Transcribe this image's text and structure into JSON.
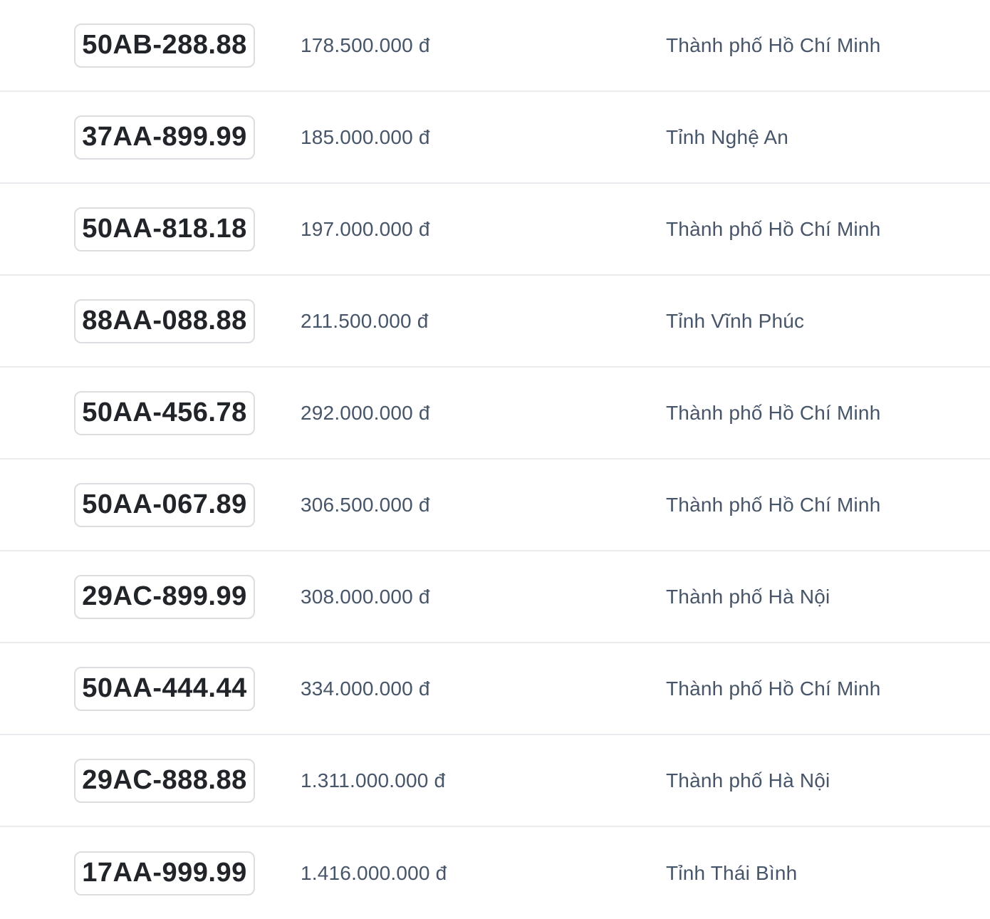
{
  "colors": {
    "background": "#ffffff",
    "row_divider": "#eaebef",
    "plate_text": "#212429",
    "plate_border": "#dddde1",
    "secondary_text": "#475569"
  },
  "table": {
    "currency_symbol": "đ",
    "rows": [
      {
        "plate": "50AB-288.88",
        "price": "178.500.000 đ",
        "province": "Thành phố Hồ Chí Minh"
      },
      {
        "plate": "37AA-899.99",
        "price": "185.000.000 đ",
        "province": "Tỉnh Nghệ An"
      },
      {
        "plate": "50AA-818.18",
        "price": "197.000.000 đ",
        "province": "Thành phố Hồ Chí Minh"
      },
      {
        "plate": "88AA-088.88",
        "price": "211.500.000 đ",
        "province": "Tỉnh Vĩnh Phúc"
      },
      {
        "plate": "50AA-456.78",
        "price": "292.000.000 đ",
        "province": "Thành phố Hồ Chí Minh"
      },
      {
        "plate": "50AA-067.89",
        "price": "306.500.000 đ",
        "province": "Thành phố Hồ Chí Minh"
      },
      {
        "plate": "29AC-899.99",
        "price": "308.000.000 đ",
        "province": "Thành phố Hà Nội"
      },
      {
        "plate": "50AA-444.44",
        "price": "334.000.000 đ",
        "province": "Thành phố Hồ Chí Minh"
      },
      {
        "plate": "29AC-888.88",
        "price": "1.311.000.000 đ",
        "province": "Thành phố Hà Nội"
      },
      {
        "plate": "17AA-999.99",
        "price": "1.416.000.000 đ",
        "province": "Tỉnh Thái Bình"
      }
    ]
  }
}
